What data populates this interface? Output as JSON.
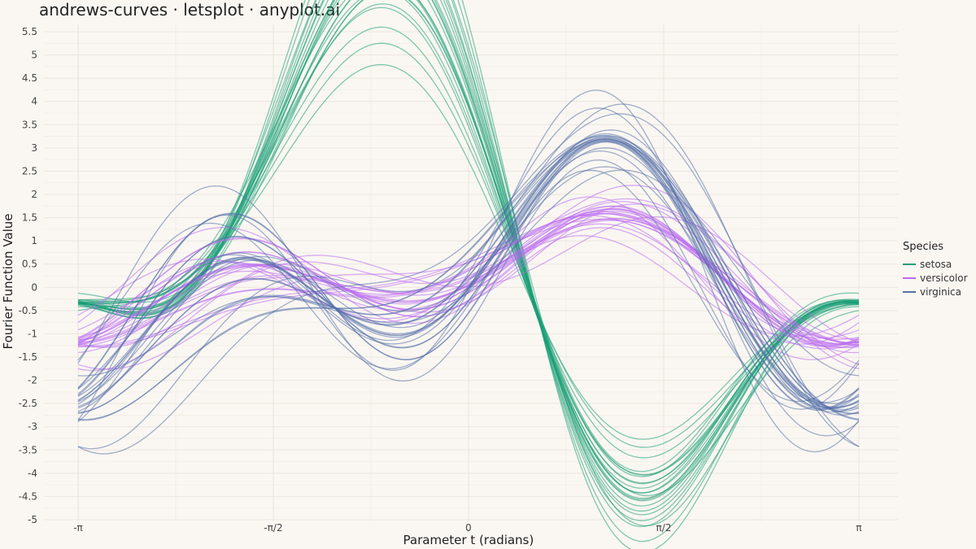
{
  "title": "andrews-curves · letsplot · anyplot.ai",
  "chart_data": {
    "type": "line",
    "title": "andrews-curves · letsplot · anyplot.ai",
    "xlabel": "Parameter t (radians)",
    "ylabel": "Fourier Function Value",
    "xlim": [
      -3.14159,
      3.14159
    ],
    "ylim": [
      -5,
      5.5
    ],
    "x_ticks": [
      {
        "value": -3.14159,
        "label": "-π"
      },
      {
        "value": -1.5708,
        "label": "-π/2"
      },
      {
        "value": 0,
        "label": "0"
      },
      {
        "value": 1.5708,
        "label": "π/2"
      },
      {
        "value": 3.14159,
        "label": "π"
      }
    ],
    "y_ticks": [
      {
        "value": 5.5,
        "label": "5.5"
      },
      {
        "value": 5,
        "label": "5"
      },
      {
        "value": 4.5,
        "label": "4.5"
      },
      {
        "value": 4,
        "label": "4"
      },
      {
        "value": 3.5,
        "label": "3.5"
      },
      {
        "value": 3,
        "label": "3"
      },
      {
        "value": 2.5,
        "label": "2.5"
      },
      {
        "value": 2,
        "label": "2"
      },
      {
        "value": 1.5,
        "label": "1.5"
      },
      {
        "value": 1,
        "label": "1"
      },
      {
        "value": 0.5,
        "label": "0.5"
      },
      {
        "value": 0,
        "label": "0"
      },
      {
        "value": -0.5,
        "label": "-0.5"
      },
      {
        "value": -1,
        "label": "-1"
      },
      {
        "value": -1.5,
        "label": "-1.5"
      },
      {
        "value": -2,
        "label": "-2"
      },
      {
        "value": -2.5,
        "label": "-2.5"
      },
      {
        "value": -3,
        "label": "-3"
      },
      {
        "value": -3.5,
        "label": "-3.5"
      },
      {
        "value": -4,
        "label": "-4"
      },
      {
        "value": -4.5,
        "label": "-4.5"
      },
      {
        "value": -5,
        "label": "-5"
      }
    ],
    "grid": true,
    "legend": {
      "title": "Species",
      "position": "right"
    },
    "series": [
      {
        "name": "setosa",
        "color": "#1a9e77",
        "coefficients": [
          [
            1.0,
            -3.8,
            2.3,
            -2.0,
            1.3
          ],
          [
            0.9,
            -3.6,
            2.1,
            -1.9,
            1.2
          ],
          [
            0.85,
            -3.9,
            2.2,
            -1.7,
            1.1
          ],
          [
            1.1,
            -4.1,
            2.5,
            -2.2,
            1.4
          ],
          [
            0.95,
            -3.4,
            2.0,
            -1.8,
            1.2
          ],
          [
            1.2,
            -4.3,
            2.7,
            -2.4,
            1.5
          ],
          [
            0.8,
            -3.5,
            1.9,
            -1.6,
            1.0
          ],
          [
            1.05,
            -3.7,
            2.4,
            -2.1,
            1.3
          ],
          [
            0.75,
            -3.2,
            1.8,
            -1.5,
            0.9
          ],
          [
            1.0,
            -3.9,
            2.3,
            -2.0,
            1.25
          ],
          [
            1.15,
            -4.2,
            2.6,
            -2.3,
            1.45
          ],
          [
            0.9,
            -3.3,
            2.1,
            -1.85,
            1.15
          ],
          [
            1.3,
            -4.6,
            2.9,
            -2.5,
            1.6
          ],
          [
            0.7,
            -3.0,
            1.7,
            -1.4,
            0.85
          ],
          [
            1.25,
            -4.4,
            2.8,
            -2.2,
            1.5
          ],
          [
            0.88,
            -3.6,
            2.0,
            -1.75,
            1.1
          ],
          [
            1.08,
            -3.95,
            2.45,
            -2.15,
            1.35
          ],
          [
            0.98,
            -3.75,
            2.25,
            -1.95,
            1.22
          ],
          [
            1.18,
            -4.05,
            2.55,
            -2.25,
            1.42
          ],
          [
            0.82,
            -3.45,
            1.95,
            -1.65,
            1.05
          ],
          [
            1.4,
            -4.8,
            3.0,
            -2.6,
            1.7
          ],
          [
            0.6,
            -2.8,
            1.5,
            -1.3,
            0.8
          ],
          [
            1.02,
            -3.85,
            2.35,
            -2.05,
            1.28
          ],
          [
            0.92,
            -3.55,
            2.15,
            -1.88,
            1.18
          ]
        ]
      },
      {
        "name": "versicolor",
        "color": "#b96af0",
        "coefficients": [
          [
            0.2,
            0.4,
            0.6,
            0.5,
            -0.7
          ],
          [
            0.15,
            0.5,
            0.7,
            0.3,
            -0.6
          ],
          [
            0.25,
            0.3,
            0.5,
            0.6,
            -0.8
          ],
          [
            0.1,
            0.6,
            0.8,
            0.4,
            -0.5
          ],
          [
            0.3,
            0.2,
            0.4,
            0.7,
            -0.9
          ],
          [
            0.05,
            0.7,
            0.9,
            0.2,
            -0.4
          ],
          [
            0.22,
            0.45,
            0.65,
            0.55,
            -0.75
          ],
          [
            0.18,
            0.35,
            0.55,
            0.45,
            -0.65
          ],
          [
            0.28,
            0.55,
            0.75,
            0.35,
            -0.85
          ],
          [
            0.12,
            0.25,
            0.45,
            0.65,
            -0.55
          ],
          [
            0.35,
            0.8,
            1.0,
            0.1,
            -1.0
          ],
          [
            0.0,
            0.1,
            0.3,
            0.8,
            -0.3
          ],
          [
            0.24,
            0.42,
            0.62,
            0.52,
            -0.72
          ],
          [
            0.16,
            0.48,
            0.68,
            0.32,
            -0.62
          ],
          [
            0.26,
            0.32,
            0.52,
            0.62,
            -0.82
          ],
          [
            0.08,
            0.62,
            0.82,
            0.42,
            -0.52
          ],
          [
            0.32,
            0.22,
            0.42,
            0.72,
            -0.92
          ],
          [
            0.14,
            0.72,
            0.92,
            0.22,
            -0.42
          ],
          [
            0.2,
            0.9,
            1.1,
            0.0,
            -0.7
          ],
          [
            0.2,
            -0.1,
            0.2,
            0.9,
            -0.7
          ],
          [
            0.3,
            0.5,
            0.6,
            -0.2,
            -0.8
          ],
          [
            0.1,
            0.4,
            0.7,
            1.0,
            -0.6
          ],
          [
            0.25,
            0.6,
            0.4,
            0.3,
            -0.9
          ],
          [
            0.15,
            0.3,
            0.8,
            0.6,
            -0.5
          ]
        ]
      },
      {
        "name": "virginica",
        "color": "#5470a8",
        "coefficients": [
          [
            0.1,
            0.9,
            1.2,
            1.2,
            -1.3
          ],
          [
            0.05,
            1.1,
            1.4,
            1.0,
            -1.2
          ],
          [
            0.15,
            0.7,
            1.0,
            1.4,
            -1.4
          ],
          [
            0.0,
            1.3,
            1.6,
            0.8,
            -1.1
          ],
          [
            0.2,
            0.5,
            0.8,
            1.6,
            -1.5
          ],
          [
            -0.05,
            1.5,
            1.8,
            0.6,
            -1.0
          ],
          [
            0.12,
            0.95,
            1.25,
            1.25,
            -1.35
          ],
          [
            0.08,
            0.85,
            1.15,
            1.15,
            -1.25
          ],
          [
            0.18,
            1.05,
            1.35,
            1.05,
            -1.45
          ],
          [
            0.02,
            0.75,
            1.05,
            1.35,
            -1.15
          ],
          [
            0.25,
            1.7,
            2.0,
            0.4,
            -1.6
          ],
          [
            -0.1,
            0.3,
            0.6,
            1.8,
            -0.9
          ],
          [
            0.14,
            0.92,
            1.22,
            1.22,
            -1.32
          ],
          [
            0.06,
            1.12,
            1.42,
            1.02,
            -1.22
          ],
          [
            0.16,
            0.72,
            1.02,
            1.42,
            -1.42
          ],
          [
            0.04,
            1.32,
            1.62,
            0.82,
            -1.12
          ],
          [
            0.22,
            0.52,
            0.82,
            1.62,
            -1.52
          ],
          [
            -0.02,
            1.52,
            1.82,
            0.62,
            -1.02
          ],
          [
            0.1,
            1.9,
            2.2,
            0.2,
            -1.3
          ],
          [
            0.1,
            0.1,
            0.4,
            2.0,
            -1.3
          ],
          [
            0.2,
            0.8,
            1.4,
            2.2,
            -1.6
          ],
          [
            0.0,
            1.2,
            0.9,
            0.5,
            -1.0
          ],
          [
            0.15,
            1.0,
            1.6,
            1.6,
            -1.4
          ],
          [
            0.05,
            0.6,
            1.3,
            0.9,
            -1.2
          ]
        ]
      }
    ]
  }
}
